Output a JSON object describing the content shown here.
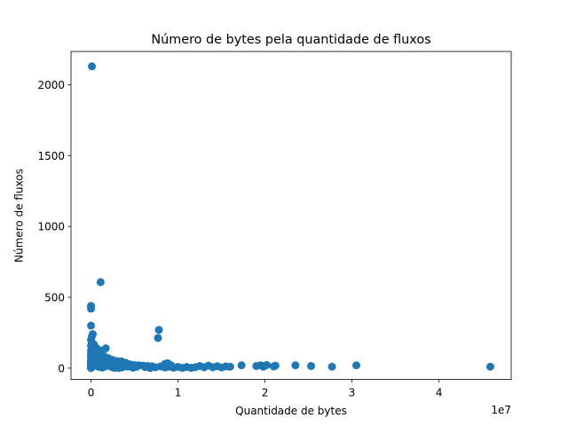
{
  "chart_data": {
    "type": "scatter",
    "title": "Número de bytes pela quantidade de fluxos",
    "xlabel": "Quantidade de bytes",
    "ylabel": "Número de fluxos",
    "x_offset_label": "1e7",
    "xlim": [
      -2300000,
      48300000
    ],
    "ylim": [
      -80,
      2235
    ],
    "x_ticks": [
      {
        "value": 0,
        "label": "0"
      },
      {
        "value": 10000000,
        "label": "1"
      },
      {
        "value": 20000000,
        "label": "2"
      },
      {
        "value": 30000000,
        "label": "3"
      },
      {
        "value": 40000000,
        "label": "4"
      }
    ],
    "y_ticks": [
      {
        "value": 0,
        "label": "0"
      },
      {
        "value": 500,
        "label": "500"
      },
      {
        "value": 1000,
        "label": "1000"
      },
      {
        "value": 1500,
        "label": "1500"
      },
      {
        "value": 2000,
        "label": "2000"
      }
    ],
    "grid": false,
    "marker_color": "#1f77b4",
    "series": [
      {
        "name": "",
        "points": [
          [
            100000,
            2130
          ],
          [
            1100000,
            607
          ],
          [
            0,
            440
          ],
          [
            0,
            420
          ],
          [
            0,
            300
          ],
          [
            200000,
            240
          ],
          [
            100000,
            225
          ],
          [
            0,
            200
          ],
          [
            100000,
            180
          ],
          [
            300000,
            170
          ],
          [
            0,
            160
          ],
          [
            500000,
            150
          ],
          [
            1700000,
            140
          ],
          [
            900000,
            130
          ],
          [
            0,
            125
          ],
          [
            200000,
            115
          ],
          [
            600000,
            110
          ],
          [
            1200000,
            105
          ],
          [
            0,
            100
          ],
          [
            300000,
            95
          ],
          [
            800000,
            90
          ],
          [
            1500000,
            85
          ],
          [
            0,
            80
          ],
          [
            400000,
            75
          ],
          [
            2000000,
            70
          ],
          [
            100000,
            65
          ],
          [
            700000,
            62
          ],
          [
            2500000,
            58
          ],
          [
            0,
            55
          ],
          [
            1100000,
            52
          ],
          [
            3000000,
            50
          ],
          [
            3500000,
            48
          ],
          [
            0,
            45
          ],
          [
            200000,
            42
          ],
          [
            1800000,
            40
          ],
          [
            4000000,
            38
          ],
          [
            500000,
            35
          ],
          [
            2200000,
            33
          ],
          [
            0,
            30
          ],
          [
            2800000,
            30
          ],
          [
            600000,
            28
          ],
          [
            3300000,
            28
          ],
          [
            4500000,
            26
          ],
          [
            1000000,
            25
          ],
          [
            0,
            22
          ],
          [
            5000000,
            22
          ],
          [
            1400000,
            20
          ],
          [
            5500000,
            20
          ],
          [
            0,
            18
          ],
          [
            6000000,
            18
          ],
          [
            2100000,
            17
          ],
          [
            300000,
            15
          ],
          [
            6500000,
            15
          ],
          [
            3800000,
            14
          ],
          [
            0,
            12
          ],
          [
            7000000,
            13
          ],
          [
            1600000,
            12
          ],
          [
            4200000,
            11
          ],
          [
            0,
            10
          ],
          [
            8000000,
            12
          ],
          [
            900000,
            9
          ],
          [
            5200000,
            9
          ],
          [
            0,
            8
          ],
          [
            9000000,
            10
          ],
          [
            2400000,
            8
          ],
          [
            6200000,
            8
          ],
          [
            0,
            6
          ],
          [
            10000000,
            9
          ],
          [
            3600000,
            6
          ],
          [
            7400000,
            6
          ],
          [
            0,
            4
          ],
          [
            11000000,
            8
          ],
          [
            1300000,
            4
          ],
          [
            8500000,
            5
          ],
          [
            0,
            2
          ],
          [
            12000000,
            7
          ],
          [
            4800000,
            3
          ],
          [
            9500000,
            3
          ],
          [
            0,
            1
          ],
          [
            13000000,
            6
          ],
          [
            2700000,
            2
          ],
          [
            10500000,
            2
          ],
          [
            14000000,
            6
          ],
          [
            6800000,
            1
          ],
          [
            11500000,
            2
          ],
          [
            15000000,
            5
          ],
          [
            3200000,
            1
          ],
          [
            7800000,
            270
          ],
          [
            7700000,
            213
          ],
          [
            8500000,
            30
          ],
          [
            8800000,
            35
          ],
          [
            9200000,
            20
          ],
          [
            12500000,
            15
          ],
          [
            13500000,
            18
          ],
          [
            14500000,
            14
          ],
          [
            15500000,
            12
          ],
          [
            16000000,
            10
          ],
          [
            17300000,
            20
          ],
          [
            19000000,
            15
          ],
          [
            19500000,
            20
          ],
          [
            19800000,
            10
          ],
          [
            20000000,
            18
          ],
          [
            20200000,
            22
          ],
          [
            21000000,
            12
          ],
          [
            21200000,
            18
          ],
          [
            23500000,
            20
          ],
          [
            25300000,
            15
          ],
          [
            27700000,
            10
          ],
          [
            30500000,
            20
          ],
          [
            45900000,
            10
          ]
        ]
      }
    ]
  }
}
